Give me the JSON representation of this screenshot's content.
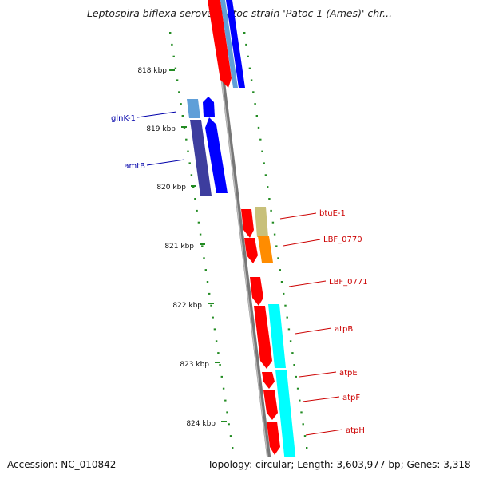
{
  "header": {
    "title": "Leptospira biflexa serovar Patoc strain 'Patoc 1 (Ames)' chr..."
  },
  "footer": {
    "accession": "Accession: NC_010842",
    "topology": "Topology: circular; Length: 3,603,977 bp; Genes: 3,318"
  },
  "ticks": [
    {
      "label": "818 kbp"
    },
    {
      "label": "819 kbp"
    },
    {
      "label": "820 kbp"
    },
    {
      "label": "821 kbp"
    },
    {
      "label": "822 kbp"
    },
    {
      "label": "823 kbp"
    },
    {
      "label": "824 kbp"
    }
  ],
  "genes": [
    {
      "name": "glnK-1",
      "strand": "left"
    },
    {
      "name": "amtB",
      "strand": "left"
    },
    {
      "name": "btuE-1",
      "strand": "right"
    },
    {
      "name": "LBF_0770",
      "strand": "right"
    },
    {
      "name": "LBF_0771",
      "strand": "right"
    },
    {
      "name": "atpB",
      "strand": "right"
    },
    {
      "name": "atpE",
      "strand": "right"
    },
    {
      "name": "atpF",
      "strand": "right"
    },
    {
      "name": "atpH",
      "strand": "right"
    }
  ],
  "colors": {
    "cds_forward": "#ff0000",
    "cds_reverse": "#0000ff",
    "backbone": "#808080",
    "tick": "#228b22",
    "label_left": "#0000aa",
    "label_right": "#cc0000",
    "cog_lightblue": "#5f9fd8",
    "cog_darkblue": "#3d3d9e",
    "cog_khaki": "#c8c07a",
    "cog_orange": "#ff8c00",
    "cog_cyan": "#00ffff"
  }
}
